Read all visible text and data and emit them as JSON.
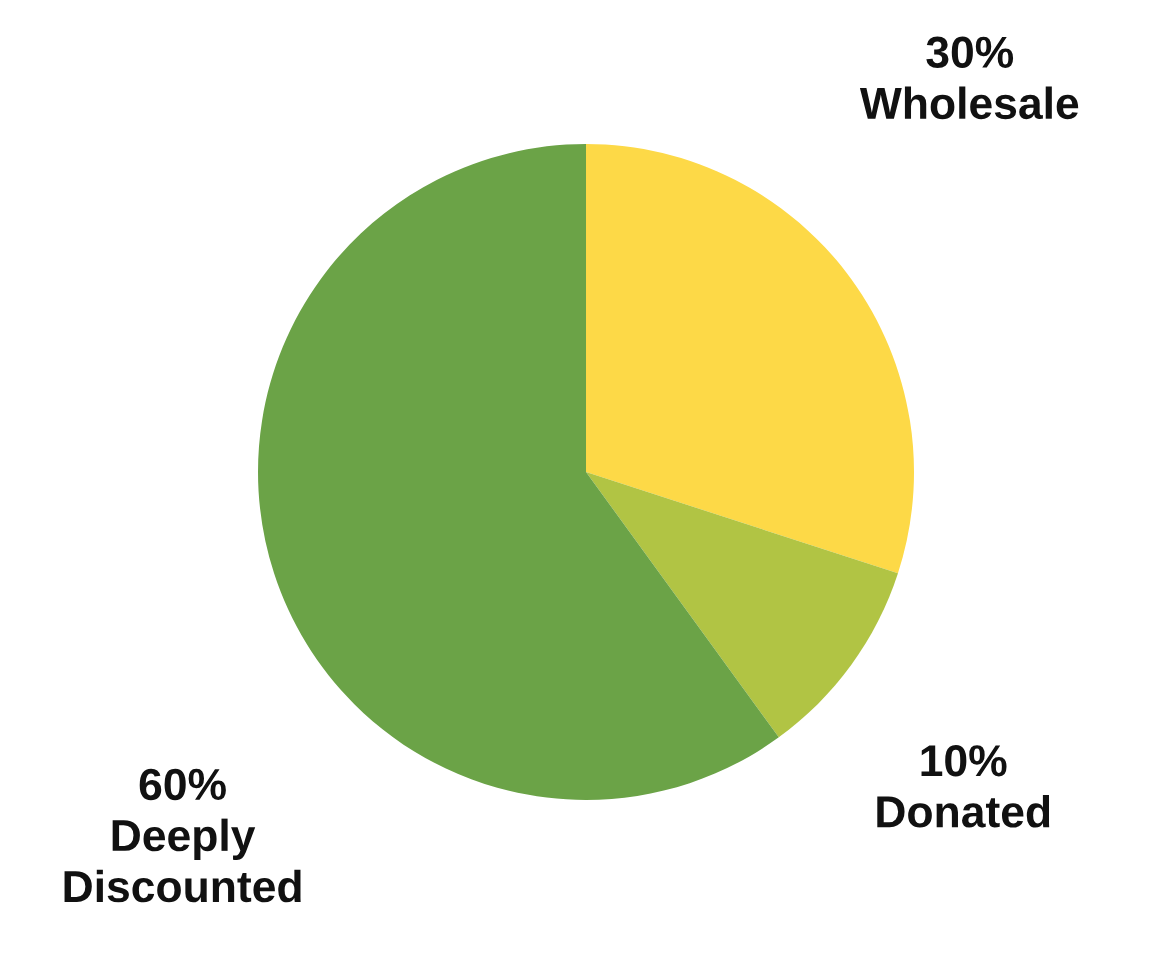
{
  "chart_data": {
    "type": "pie",
    "categories": [
      "Wholesale",
      "Donated",
      "Deeply Discounted"
    ],
    "values": [
      30,
      10,
      60
    ],
    "colors": [
      "#fdd947",
      "#b1c444",
      "#6ba347"
    ],
    "value_labels": [
      "30%",
      "10%",
      "60%"
    ]
  }
}
